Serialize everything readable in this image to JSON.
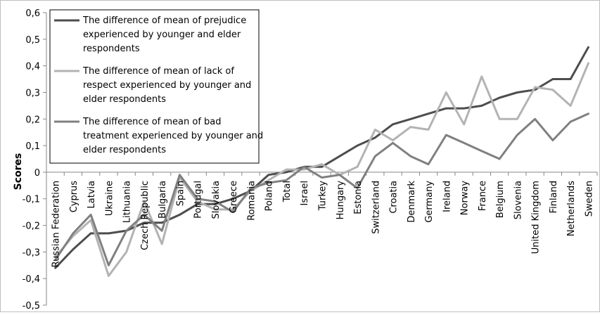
{
  "chart_data": {
    "type": "line",
    "title": "",
    "xlabel": "",
    "ylabel": "Scores",
    "ylim": [
      -0.5,
      0.6
    ],
    "yticks": [
      "0,6",
      "0,5",
      "0,4",
      "0,3",
      "0,2",
      "0,1",
      "0",
      "-0,1",
      "-0,2",
      "-0,3",
      "-0,4",
      "-0,5"
    ],
    "categories": [
      "Russian Federation",
      "Cyprus",
      "Latvia",
      "Ukraine",
      "Lithuania",
      "Czech Republic",
      "Bulgaria",
      "Spain",
      "Portugal",
      "Slovakia",
      "Greece",
      "Romania",
      "Poland",
      "Total",
      "Israel",
      "Turkey",
      "Hungary",
      "Estonia",
      "Switzerland",
      "Croatia",
      "Denmark",
      "Germany",
      "Ireland",
      "Norway",
      "France",
      "Belgium",
      "Slovenia",
      "United Kingdom",
      "Finland",
      "Netherlands",
      "Sweden"
    ],
    "legend_position": "top-left",
    "grid": false,
    "series": [
      {
        "name": "The difference of mean of prejudice experienced by younger and elder respondents",
        "color": "#4d4d4d",
        "values": [
          -0.36,
          -0.29,
          -0.23,
          -0.23,
          -0.22,
          -0.19,
          -0.19,
          -0.16,
          -0.12,
          -0.12,
          -0.1,
          -0.07,
          -0.01,
          0.0,
          0.02,
          0.02,
          0.06,
          0.1,
          0.13,
          0.18,
          0.2,
          0.22,
          0.24,
          0.24,
          0.25,
          0.28,
          0.3,
          0.31,
          0.35,
          0.35,
          0.47
        ]
      },
      {
        "name": "The difference of mean of lack of respect experienced by younger and elder respondents",
        "color": "#b3b3b3",
        "values": [
          -0.32,
          -0.24,
          -0.18,
          -0.39,
          -0.3,
          -0.11,
          -0.27,
          -0.02,
          -0.11,
          -0.14,
          -0.14,
          -0.07,
          -0.03,
          0.01,
          0.01,
          0.03,
          -0.01,
          0.02,
          0.16,
          0.12,
          0.17,
          0.16,
          0.3,
          0.18,
          0.36,
          0.2,
          0.2,
          0.32,
          0.31,
          0.25,
          0.41
        ]
      },
      {
        "name": "The difference of mean of bad treatment experienced by younger and elder respondents",
        "color": "#808080",
        "values": [
          -0.33,
          -0.23,
          -0.16,
          -0.35,
          -0.22,
          -0.16,
          -0.22,
          -0.01,
          -0.1,
          -0.11,
          -0.15,
          -0.06,
          -0.04,
          -0.03,
          0.02,
          -0.02,
          -0.01,
          -0.06,
          0.06,
          0.11,
          0.06,
          0.03,
          0.14,
          0.11,
          0.08,
          0.05,
          0.14,
          0.2,
          0.12,
          0.19,
          0.22
        ]
      }
    ]
  }
}
